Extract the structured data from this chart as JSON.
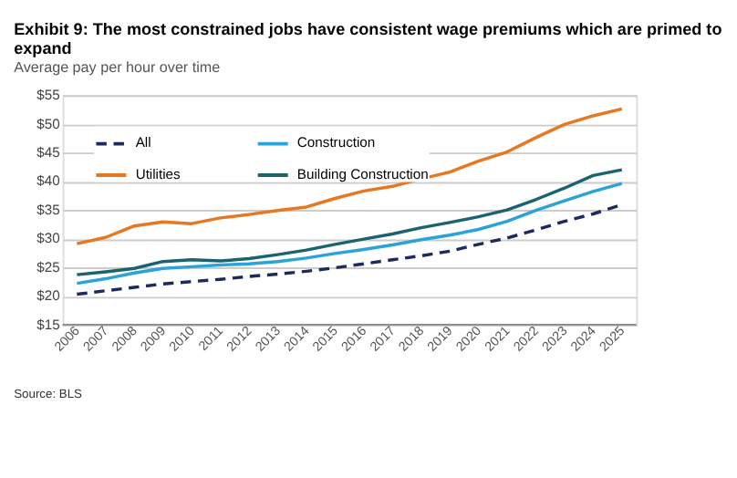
{
  "chart_data": {
    "type": "line",
    "title": "Exhibit 9: The most constrained jobs have consistent wage premiums which are primed to expand",
    "subtitle": "Average pay per hour over time",
    "categories": [
      "2006",
      "2007",
      "2008",
      "2009",
      "2010",
      "2011",
      "2012",
      "2013",
      "2014",
      "2015",
      "2016",
      "2017",
      "2018",
      "2019",
      "2020",
      "2021",
      "2022",
      "2023",
      "2024",
      "2025"
    ],
    "series": [
      {
        "name": "All",
        "color": "#1f2a5c",
        "line_style": "dashed",
        "values": [
          20.3,
          20.9,
          21.5,
          22.1,
          22.5,
          22.9,
          23.4,
          23.8,
          24.3,
          24.9,
          25.6,
          26.3,
          27.0,
          27.8,
          29.0,
          30.1,
          31.5,
          33.0,
          34.3,
          35.9
        ]
      },
      {
        "name": "Construction",
        "color": "#29a3d9",
        "line_style": "solid",
        "values": [
          22.2,
          23.0,
          24.0,
          24.8,
          25.1,
          25.4,
          25.6,
          26.0,
          26.6,
          27.4,
          28.1,
          28.9,
          29.8,
          30.6,
          31.6,
          33.0,
          34.9,
          36.6,
          38.2,
          39.6
        ]
      },
      {
        "name": "Utilities",
        "color": "#e87722",
        "line_style": "solid",
        "values": [
          29.1,
          30.2,
          32.2,
          32.9,
          32.6,
          33.6,
          34.2,
          34.9,
          35.5,
          37.0,
          38.3,
          39.1,
          40.4,
          41.6,
          43.5,
          45.1,
          47.6,
          49.9,
          51.4,
          52.6
        ]
      },
      {
        "name": "Building Construction",
        "color": "#1a6470",
        "line_style": "solid",
        "values": [
          23.7,
          24.2,
          24.8,
          26.0,
          26.3,
          26.1,
          26.5,
          27.2,
          28.0,
          29.0,
          29.9,
          30.8,
          31.9,
          32.8,
          33.8,
          35.0,
          36.8,
          38.8,
          41.0,
          42.0
        ]
      }
    ],
    "ylim": [
      15,
      55
    ],
    "yticks": [
      {
        "value": 15,
        "label": "$15"
      },
      {
        "value": 20,
        "label": "$20"
      },
      {
        "value": 25,
        "label": "$25"
      },
      {
        "value": 30,
        "label": "$30"
      },
      {
        "value": 35,
        "label": "$35"
      },
      {
        "value": 40,
        "label": "$40"
      },
      {
        "value": 45,
        "label": "$45"
      },
      {
        "value": 50,
        "label": "$50"
      },
      {
        "value": 55,
        "label": "$55"
      }
    ],
    "grid": "y",
    "legend": "top left",
    "marker": "none",
    "annotations": [
      "Source: BLS"
    ]
  }
}
